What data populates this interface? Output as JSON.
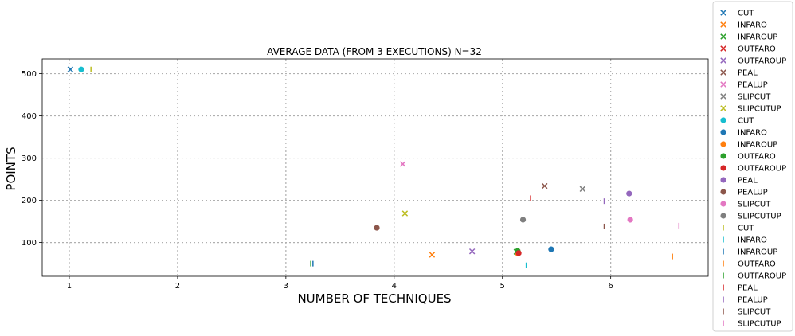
{
  "chart_data": {
    "type": "scatter",
    "title": "AVERAGE DATA (FROM 3 EXECUTIONS) N=32",
    "xlabel": "NUMBER OF TECHNIQUES",
    "ylabel": "POINTS",
    "xlim": [
      0.75,
      6.9
    ],
    "ylim": [
      20,
      535
    ],
    "xticks": [
      1,
      2,
      3,
      4,
      5,
      6
    ],
    "yticks": [
      100,
      200,
      300,
      400,
      500
    ],
    "grid": true,
    "legend_position": "outside-right",
    "series": [
      {
        "name": "CUT",
        "marker": "x",
        "color": "#1f77b4",
        "x": [
          1.01
        ],
        "y": [
          510
        ]
      },
      {
        "name": "INFARO",
        "marker": "x",
        "color": "#ff7f0e",
        "x": [
          4.35
        ],
        "y": [
          71
        ]
      },
      {
        "name": "INFAROUP",
        "marker": "x",
        "color": "#2ca02c",
        "x": [
          5.13
        ],
        "y": [
          78
        ]
      },
      {
        "name": "OUTFARO",
        "marker": "x",
        "color": "#d62728",
        "x": [
          5.14
        ],
        "y": [
          77
        ]
      },
      {
        "name": "OUTFAROUP",
        "marker": "x",
        "color": "#9467bd",
        "x": [
          4.72
        ],
        "y": [
          79
        ]
      },
      {
        "name": "PEAL",
        "marker": "x",
        "color": "#8c564b",
        "x": [
          5.39
        ],
        "y": [
          234
        ]
      },
      {
        "name": "PEALUP",
        "marker": "x",
        "color": "#e377c2",
        "x": [
          4.08
        ],
        "y": [
          286
        ]
      },
      {
        "name": "SLIPCUT",
        "marker": "x",
        "color": "#7f7f7f",
        "x": [
          5.74
        ],
        "y": [
          227
        ]
      },
      {
        "name": "SLIPCUTUP",
        "marker": "x",
        "color": "#bcbd22",
        "x": [
          4.1
        ],
        "y": [
          169
        ]
      },
      {
        "name": "CUT",
        "marker": "o",
        "color": "#17becf",
        "x": [
          1.11
        ],
        "y": [
          510
        ]
      },
      {
        "name": "INFARO",
        "marker": "o",
        "color": "#1f77b4",
        "x": [
          5.45
        ],
        "y": [
          84
        ]
      },
      {
        "name": "INFAROUP",
        "marker": "o",
        "color": "#ff7f0e",
        "x": [
          5.14
        ],
        "y": [
          75
        ]
      },
      {
        "name": "OUTFARO",
        "marker": "o",
        "color": "#2ca02c",
        "x": [
          5.14
        ],
        "y": [
          80
        ]
      },
      {
        "name": "OUTFAROUP",
        "marker": "o",
        "color": "#d62728",
        "x": [
          5.15
        ],
        "y": [
          75
        ]
      },
      {
        "name": "PEAL",
        "marker": "o",
        "color": "#9467bd",
        "x": [
          6.17
        ],
        "y": [
          216
        ]
      },
      {
        "name": "PEALUP",
        "marker": "o",
        "color": "#8c564b",
        "x": [
          3.84
        ],
        "y": [
          135
        ]
      },
      {
        "name": "SLIPCUT",
        "marker": "o",
        "color": "#e377c2",
        "x": [
          6.18
        ],
        "y": [
          154
        ]
      },
      {
        "name": "SLIPCUTUP",
        "marker": "o",
        "color": "#7f7f7f",
        "x": [
          5.19
        ],
        "y": [
          154
        ]
      },
      {
        "name": "CUT",
        "marker": "|",
        "color": "#bcbd22",
        "x": [
          1.2
        ],
        "y": [
          510
        ]
      },
      {
        "name": "INFARO",
        "marker": "|",
        "color": "#17becf",
        "x": [
          5.22
        ],
        "y": [
          46
        ]
      },
      {
        "name": "INFAROUP",
        "marker": "|",
        "color": "#1f77b4",
        "x": [
          3.25
        ],
        "y": [
          50
        ]
      },
      {
        "name": "OUTFARO",
        "marker": "|",
        "color": "#ff7f0e",
        "x": [
          6.57
        ],
        "y": [
          67
        ]
      },
      {
        "name": "OUTFAROUP",
        "marker": "|",
        "color": "#2ca02c",
        "x": [
          3.23
        ],
        "y": [
          50
        ]
      },
      {
        "name": "PEAL",
        "marker": "|",
        "color": "#d62728",
        "x": [
          5.26
        ],
        "y": [
          205
        ]
      },
      {
        "name": "PEALUP",
        "marker": "|",
        "color": "#9467bd",
        "x": [
          5.94
        ],
        "y": [
          198
        ]
      },
      {
        "name": "SLIPCUT",
        "marker": "|",
        "color": "#8c564b",
        "x": [
          5.94
        ],
        "y": [
          138
        ]
      },
      {
        "name": "SLIPCUTUP",
        "marker": "|",
        "color": "#e377c2",
        "x": [
          6.63
        ],
        "y": [
          140
        ]
      }
    ]
  }
}
